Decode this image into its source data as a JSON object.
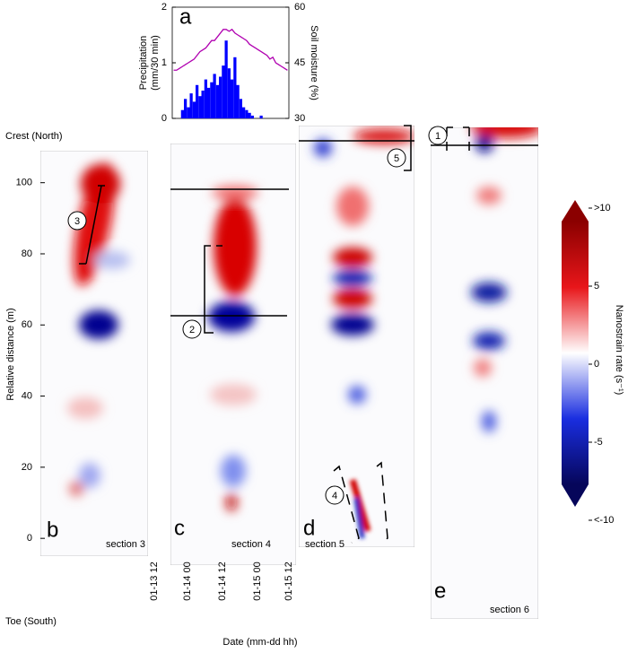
{
  "chart_data": [
    {
      "type": "bar_line",
      "panel_label": "a",
      "ylabel": [
        "Precipitation",
        "(mm/30 min)"
      ],
      "y2label": "Soil moisture  (%)",
      "ylim": [
        0,
        2
      ],
      "yticks": [
        0,
        1,
        2
      ],
      "y2lim": [
        30,
        60
      ],
      "y2ticks": [
        30,
        45,
        60
      ],
      "series": [
        {
          "name": "Precipitation",
          "color": "#0000ff",
          "values": [
            0,
            0,
            0,
            0.15,
            0.35,
            0.2,
            0.45,
            0.3,
            0.6,
            0.4,
            0.5,
            0.7,
            0.55,
            0.65,
            0.8,
            0.6,
            0.75,
            0.95,
            1.4,
            0.9,
            0.7,
            1.1,
            0.6,
            0.35,
            0.2,
            0.15,
            0.1,
            0.05,
            0,
            0,
            0.05,
            0,
            0,
            0,
            0,
            0,
            0,
            0,
            0,
            0
          ]
        },
        {
          "name": "Soil moisture",
          "color": "#b000b0",
          "axis": "y2",
          "values": [
            43,
            43,
            43.5,
            44,
            44.5,
            45,
            45.5,
            46,
            47,
            48,
            48.5,
            49,
            50,
            51,
            51,
            52,
            53,
            54,
            54,
            53.5,
            54,
            53,
            52.5,
            52,
            51.5,
            51,
            50,
            49.5,
            49,
            48.5,
            48,
            47.5,
            47,
            46,
            46.5,
            45,
            44.5,
            44,
            43.5,
            43
          ]
        }
      ]
    },
    {
      "type": "heatmap",
      "ylabel": "Relative distance (m)",
      "xlabel": "Date (mm-dd hh)",
      "ylim": [
        -5,
        109
      ],
      "yticks": [
        0,
        20,
        40,
        60,
        80,
        100
      ],
      "categories": [
        "01-13 12",
        "01-14 00",
        "01-14 12",
        "01-15 00",
        "01-15 12"
      ],
      "crest": "Crest (North)",
      "toe": "Toe (South)",
      "panels": [
        {
          "label": "b",
          "section": "section 3"
        },
        {
          "label": "c",
          "section": "section 4"
        },
        {
          "label": "d",
          "section": "section 5"
        },
        {
          "label": "e",
          "section": "section 6"
        }
      ],
      "markers": [
        "1",
        "2",
        "3",
        "4",
        "5"
      ],
      "colorbar": {
        "label": "Nanostrain rate (s⁻¹)",
        "lim": [
          -10,
          10
        ],
        "ticks": [
          {
            "value": 10,
            "label": ">10"
          },
          5,
          0,
          -5,
          {
            "value": -10,
            "label": "<-10"
          }
        ]
      }
    }
  ]
}
